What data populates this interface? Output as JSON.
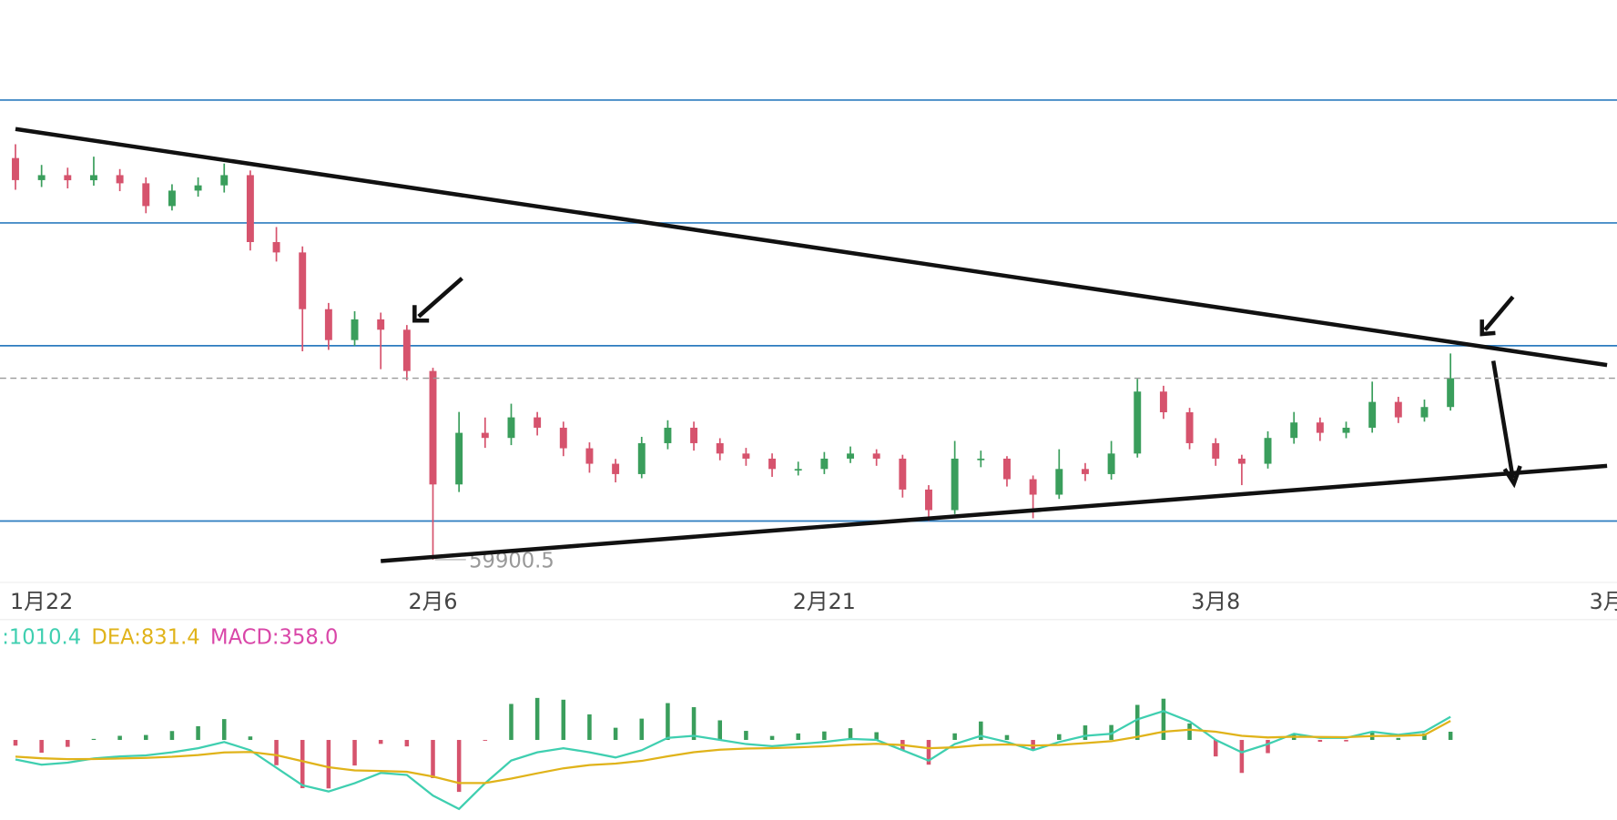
{
  "chart_data": {
    "type": "candlestick",
    "categories": [
      null,
      "1月22",
      null,
      null,
      null,
      null,
      null,
      null,
      null,
      null,
      null,
      null,
      null,
      null,
      null,
      null,
      "2月6",
      null,
      null,
      null,
      null,
      null,
      null,
      null,
      null,
      null,
      null,
      null,
      null,
      null,
      null,
      "2月21",
      null,
      null,
      null,
      null,
      null,
      null,
      null,
      null,
      null,
      null,
      null,
      null,
      null,
      null,
      "3月8",
      null,
      null,
      null,
      null,
      null,
      null,
      null,
      null,
      null,
      null,
      null,
      null,
      null,
      null,
      "3月"
    ],
    "open": [
      89000,
      87400,
      87760,
      87390,
      87760,
      87170,
      85520,
      86640,
      87020,
      87760,
      82910,
      82160,
      78050,
      75810,
      77310,
      76560,
      73570,
      65350,
      69090,
      68720,
      70210,
      69460,
      67970,
      66850,
      66100,
      68340,
      69460,
      68340,
      67590,
      67220,
      66470,
      66470,
      67220,
      67590,
      67220,
      64980,
      63490,
      67220,
      67220,
      65730,
      64610,
      66470,
      66100,
      67590,
      72080,
      70580,
      68340,
      67220,
      66850,
      68720,
      69840,
      69090,
      69460,
      71330,
      70210,
      70960,
      null,
      null,
      null,
      null,
      null,
      null
    ],
    "high": [
      90000,
      88500,
      88300,
      89100,
      88200,
      87600,
      87100,
      87600,
      88600,
      88100,
      84000,
      82600,
      78500,
      77900,
      77800,
      76900,
      73800,
      70600,
      70200,
      71200,
      70600,
      69900,
      68400,
      67200,
      68800,
      70000,
      69900,
      68700,
      68000,
      67600,
      67000,
      67700,
      68100,
      67900,
      67500,
      65300,
      68500,
      67800,
      67400,
      66000,
      67900,
      66900,
      68500,
      73000,
      72500,
      70900,
      68700,
      67500,
      69200,
      70600,
      70200,
      69900,
      72800,
      71700,
      71500,
      74840,
      null,
      null,
      null,
      null,
      null,
      null
    ],
    "low": [
      86700,
      86900,
      86800,
      87000,
      86600,
      85000,
      85200,
      86200,
      86500,
      82300,
      81500,
      75000,
      75100,
      75400,
      73700,
      72900,
      59900.5,
      64800,
      68000,
      68200,
      68900,
      67400,
      66200,
      65500,
      65800,
      67900,
      67800,
      67100,
      66700,
      65900,
      66000,
      66100,
      66900,
      66700,
      64400,
      62700,
      63200,
      66600,
      65200,
      62900,
      64300,
      65600,
      65700,
      67300,
      70100,
      67900,
      66700,
      65300,
      66500,
      68300,
      68500,
      68700,
      69100,
      69800,
      69900,
      70700,
      null,
      null,
      null,
      null,
      null,
      null
    ],
    "close": [
      87400,
      87760,
      87390,
      87760,
      87170,
      85520,
      86640,
      87020,
      87760,
      82910,
      82160,
      78050,
      75810,
      77310,
      76560,
      73570,
      65350,
      69090,
      68720,
      70210,
      69460,
      67970,
      66850,
      66100,
      68340,
      69460,
      68340,
      67590,
      67220,
      66470,
      66470,
      67220,
      67590,
      67220,
      64980,
      63490,
      67220,
      67220,
      65730,
      64610,
      66470,
      66100,
      67590,
      72080,
      70580,
      68340,
      67220,
      66850,
      68720,
      69840,
      69090,
      69460,
      71330,
      70210,
      70960,
      73050,
      null,
      null,
      null,
      null,
      null,
      null
    ],
    "up_color": "#3a9e5c",
    "down_color": "#d6536d",
    "ylim": [
      58250,
      100450
    ],
    "levels": [
      93200,
      84300,
      75400,
      62700
    ],
    "level_color": "#2b7bbf",
    "trendlines": [
      {
        "x": [
          0,
          61
        ],
        "y": [
          91100,
          74000
        ]
      },
      {
        "x": [
          14,
          61
        ],
        "y": [
          59800,
          66700
        ]
      }
    ],
    "macd": {
      "dif": [
        -855,
        -1080,
        -990,
        -810,
        -720,
        -675,
        -540,
        -360,
        -90,
        -450,
        -1215,
        -1980,
        -2250,
        -1890,
        -1440,
        -1530,
        -2430,
        -3015,
        -1890,
        -900,
        -540,
        -360,
        -540,
        -765,
        -450,
        90,
        180,
        0,
        -180,
        -270,
        -180,
        -90,
        45,
        0,
        -450,
        -900,
        -180,
        180,
        -90,
        -450,
        -90,
        180,
        270,
        900,
        1260,
        810,
        0,
        -540,
        -180,
        270,
        90,
        90,
        360,
        225,
        360,
        1010.4,
        null,
        null,
        null,
        null,
        null,
        null
      ],
      "dea": [
        -731,
        -801,
        -839,
        -833,
        -810,
        -783,
        -734,
        -659,
        -545,
        -526,
        -664,
        -927,
        -1192,
        -1332,
        -1354,
        -1389,
        -1597,
        -1881,
        -1883,
        -1686,
        -1457,
        -1238,
        -1098,
        -1031,
        -915,
        -714,
        -535,
        -428,
        -378,
        -357,
        -322,
        -275,
        -211,
        -169,
        -225,
        -360,
        -324,
        -223,
        -196,
        -247,
        -216,
        -137,
        -56,
        135,
        360,
        450,
        360,
        180,
        108,
        140,
        130,
        122,
        170,
        181,
        217,
        831.4,
        null,
        null,
        null,
        null,
        null,
        null
      ],
      "hist": [
        -248,
        -558,
        -302,
        46,
        180,
        216,
        388,
        598,
        910,
        152,
        -1102,
        -2106,
        -2116,
        -1116,
        -172,
        -282,
        -1666,
        -2268,
        -14,
        1572,
        1834,
        1756,
        1116,
        532,
        930,
        1608,
        1430,
        856,
        396,
        174,
        284,
        370,
        512,
        338,
        -450,
        -1080,
        288,
        806,
        212,
        -406,
        252,
        634,
        652,
        1530,
        1800,
        720,
        -720,
        -1440,
        -576,
        260,
        -80,
        -64,
        380,
        88,
        286,
        358,
        null,
        null,
        null,
        null,
        null,
        null
      ],
      "ylim": [
        -3700,
        4400
      ],
      "dif_color": "#3fcfb0",
      "dea_color": "#e0b31a",
      "labels": [
        ":1010.4",
        "DEA:831.4",
        "MACD:358.0"
      ],
      "label_colors": [
        "#3fcfb0",
        "#e0b31a",
        "#d946a8"
      ]
    }
  }
}
